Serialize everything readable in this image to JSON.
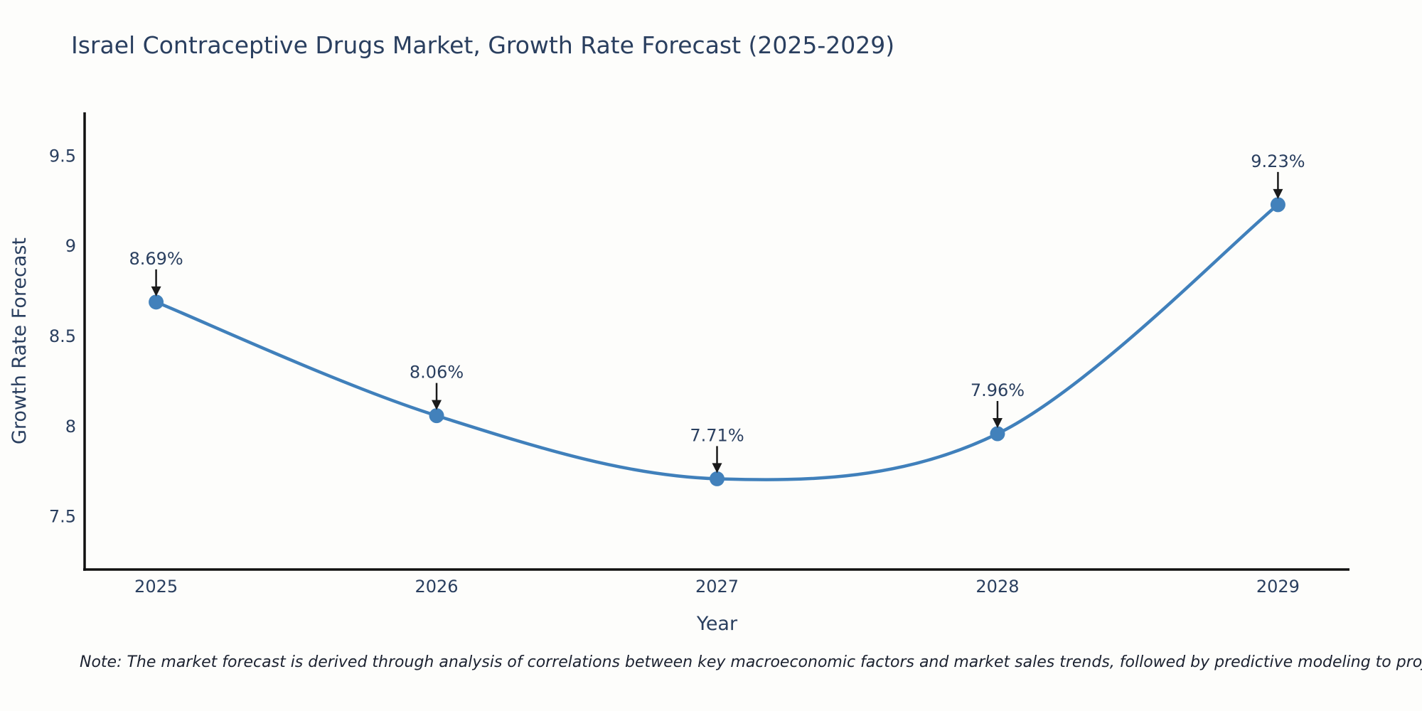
{
  "chart_data": {
    "type": "line",
    "title": "Israel Contraceptive Drugs Market, Growth Rate Forecast (2025-2029)",
    "xlabel": "Year",
    "ylabel": "Growth Rate Forecast",
    "x": [
      2025,
      2026,
      2027,
      2028,
      2029
    ],
    "y": [
      8.69,
      8.06,
      7.71,
      7.96,
      9.23
    ],
    "point_labels": [
      "8.69%",
      "8.06%",
      "7.71%",
      "7.96%",
      "9.23%"
    ],
    "x_ticks": [
      "2025",
      "2026",
      "2027",
      "2028",
      "2029"
    ],
    "y_ticks": [
      7.5,
      8,
      8.5,
      9,
      9.5
    ],
    "y_tick_labels": [
      "7.5",
      "8",
      "8.5",
      "9",
      "9.5"
    ],
    "xlim": [
      2024.745,
      2029.255
    ],
    "ylim": [
      7.207,
      9.742
    ],
    "line_shape": "spline",
    "grid": false,
    "legend": "none",
    "colors": {
      "line": "#4080bb",
      "marker": "#4281bb",
      "axis_line": "#111111",
      "text": "#2a3f5f",
      "arrow": "#1a1a1a",
      "background": "#fdfdfb"
    }
  },
  "note": {
    "text": "Note: The market forecast is derived through analysis of correlations between key macroeconomic factors and market sales trends, followed by predictive modeling to project future sales"
  }
}
